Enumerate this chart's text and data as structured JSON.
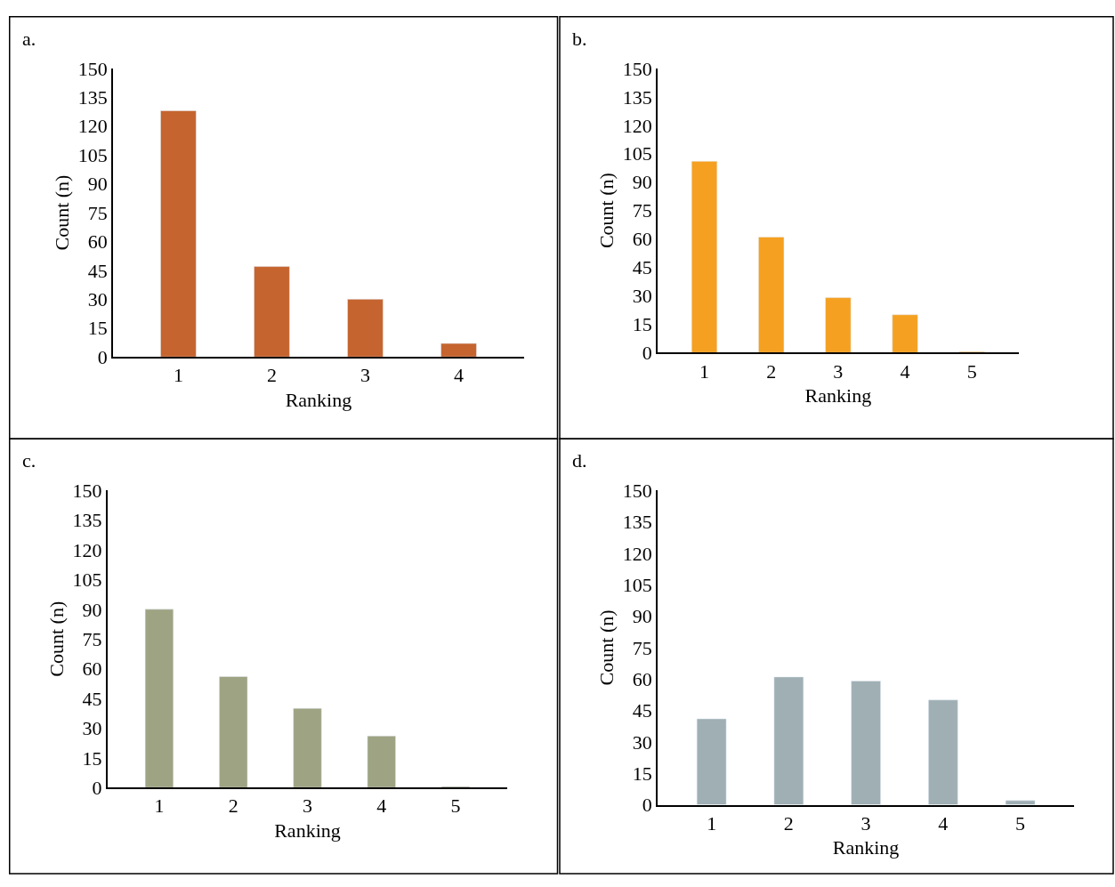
{
  "chart_data": [
    {
      "type": "bar",
      "title": "a.",
      "xlabel": "Ranking",
      "ylabel": "Count (n)",
      "categories": [
        "1",
        "2",
        "3",
        "4"
      ],
      "values": [
        128,
        47,
        30,
        7
      ],
      "color": "#c5642f",
      "ylim": [
        0,
        150
      ],
      "yticks": [
        0,
        15,
        30,
        45,
        60,
        75,
        90,
        105,
        120,
        135,
        150
      ]
    },
    {
      "type": "bar",
      "title": "b.",
      "xlabel": "Ranking",
      "ylabel": "Count (n)",
      "categories": [
        "1",
        "2",
        "3",
        "4",
        "5"
      ],
      "values": [
        101,
        61,
        29,
        20,
        0.5
      ],
      "color": "#f5a020",
      "ylim": [
        0,
        150
      ],
      "yticks": [
        0,
        15,
        30,
        45,
        60,
        75,
        90,
        105,
        120,
        135,
        150
      ]
    },
    {
      "type": "bar",
      "title": "c.",
      "xlabel": "Ranking",
      "ylabel": "Count (n)",
      "categories": [
        "1",
        "2",
        "3",
        "4",
        "5"
      ],
      "values": [
        90,
        56,
        40,
        26,
        0.5
      ],
      "color": "#9ea383",
      "ylim": [
        0,
        150
      ],
      "yticks": [
        0,
        15,
        30,
        45,
        60,
        75,
        90,
        105,
        120,
        135,
        150
      ]
    },
    {
      "type": "bar",
      "title": "d.",
      "xlabel": "Ranking",
      "ylabel": "Count (n)",
      "categories": [
        "1",
        "2",
        "3",
        "4",
        "5"
      ],
      "values": [
        41,
        61,
        59,
        50,
        2
      ],
      "color": "#9fafb4",
      "ylim": [
        0,
        150
      ],
      "yticks": [
        0,
        15,
        30,
        45,
        60,
        75,
        90,
        105,
        120,
        135,
        150
      ]
    }
  ]
}
